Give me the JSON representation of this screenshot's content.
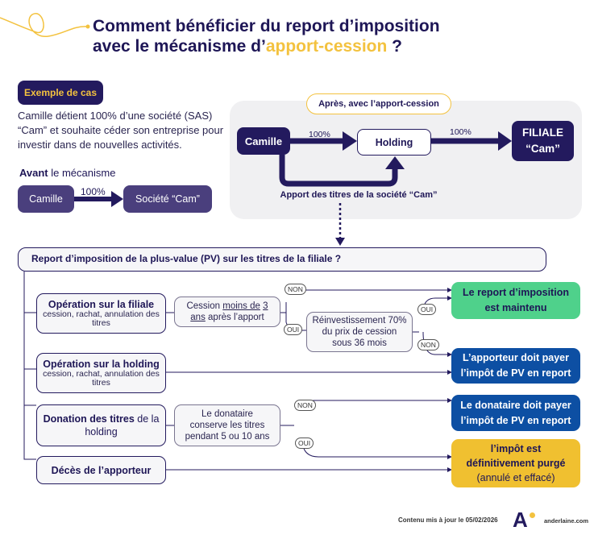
{
  "title": {
    "line1": "Comment bénéficier du report d’imposition",
    "line2_prefix": "avec le mécanisme d’",
    "line2_highlight": "apport-cession",
    "line2_suffix": " ?"
  },
  "colors": {
    "navy": "#231a5e",
    "gold": "#f3c23f",
    "green": "#4fd18b",
    "blue": "#0d4fa3",
    "purple": "#4a3f7d"
  },
  "example": {
    "badge": "Exemple de cas",
    "text": "Camille détient 100% d’une société (SAS) “Cam” et souhaite céder son entreprise pour investir dans de nouvelles activités."
  },
  "before": {
    "label_bold": "Avant",
    "label_rest": " le mécanisme",
    "from": "Camille",
    "pct": "100%",
    "to": "Société “Cam”"
  },
  "after": {
    "pill": "Après, avec l’apport-cession",
    "camille": "Camille",
    "pct1": "100%",
    "holding": "Holding",
    "pct2": "100%",
    "filiale_line1": "FILIALE",
    "filiale_line2": "“Cam”",
    "apport": "Apport des titres de la société “Cam”"
  },
  "question": "Report d’imposition de la plus-value (PV) sur les titres de la filiale ?",
  "cases": {
    "filiale": {
      "title": "Opération sur la filiale",
      "sub": "cession, rachat, annulation des titres"
    },
    "holding": {
      "title": "Opération sur la holding",
      "sub": "cession, rachat, annulation des titres"
    },
    "donation": {
      "title_bold": "Donation des titres",
      "title_rest": " de la holding"
    },
    "deces": {
      "title": "Décès de l’apporteur"
    }
  },
  "conditions": {
    "cession_1": "Cession ",
    "cession_u1": "moins de",
    "cession_u2": "3 ans",
    "cession_2": " après l’apport",
    "reinvest": "Réinvestissement 70% du prix de cession sous 36 mois",
    "donataire": "Le donataire conserve les titres pendant 5 ou 10 ans"
  },
  "answers": {
    "yes": "OUI",
    "no": "NON"
  },
  "results": {
    "maintenu": "Le report d’imposition est maintenu",
    "apporteur": "L’apporteur doit payer l’impôt de PV en report",
    "donataire": "Le donataire doit payer l’impôt de PV en report",
    "purge_bold": "l’impôt est définitivement purgé",
    "purge_rest": "(annulé et effacé)"
  },
  "footer": {
    "updated": "Contenu mis à jour le 05/02/2026",
    "logo": "A",
    "site": "anderlaine.com"
  }
}
